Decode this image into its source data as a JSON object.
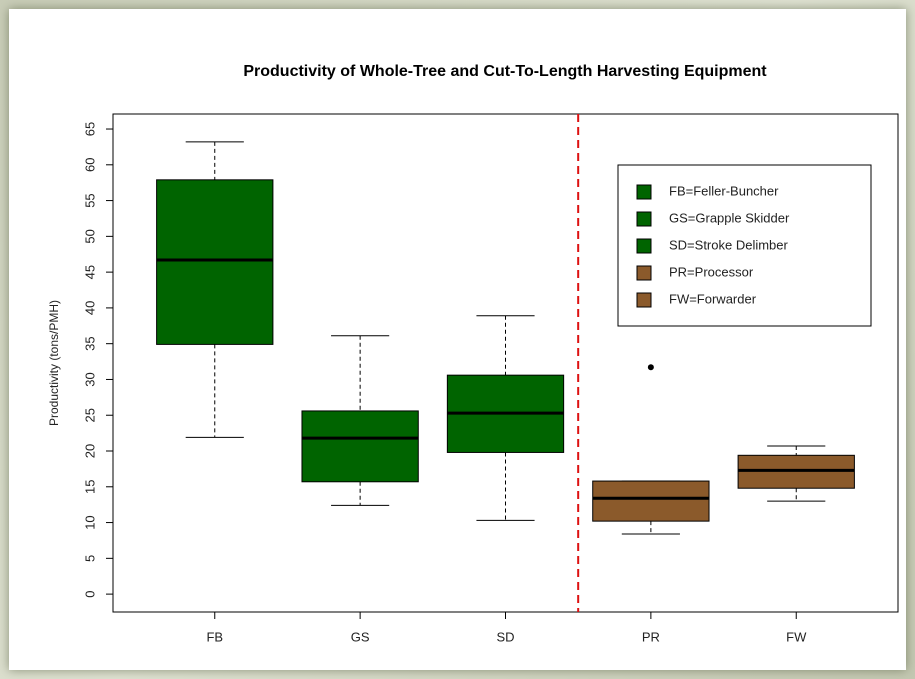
{
  "chart_data": {
    "type": "boxplot",
    "title": "Productivity of Whole-Tree and Cut-To-Length Harvesting Equipment",
    "y_label": "Productivity (tons/PMH)",
    "categories": [
      "FB",
      "GS",
      "SD",
      "PR",
      "FW"
    ],
    "boxes": [
      {
        "low": 21.9,
        "q1": 34.9,
        "median": 46.7,
        "q3": 57.9,
        "high": 63.2,
        "outliers": [],
        "color": "#006400"
      },
      {
        "low": 12.4,
        "q1": 15.7,
        "median": 21.8,
        "q3": 25.6,
        "high": 36.1,
        "outliers": [],
        "color": "#006400"
      },
      {
        "low": 10.3,
        "q1": 19.8,
        "median": 25.3,
        "q3": 30.6,
        "high": 38.9,
        "outliers": [],
        "color": "#006400"
      },
      {
        "low": 8.4,
        "q1": 10.2,
        "median": 13.4,
        "q3": 15.8,
        "high": 15.8,
        "outliers": [
          31.7
        ],
        "color": "#8b5a2b"
      },
      {
        "low": 13.0,
        "q1": 14.8,
        "median": 17.3,
        "q3": 19.4,
        "high": 20.7,
        "outliers": [],
        "color": "#8b5a2b"
      }
    ],
    "xlim": [
      0.3,
      5.7
    ],
    "ylim": [
      -2.5,
      67.1
    ],
    "yticks": [
      0,
      5,
      10,
      15,
      20,
      25,
      30,
      35,
      40,
      45,
      50,
      55,
      60,
      65
    ],
    "vline": {
      "x": 3.5,
      "color": "#dd1111"
    },
    "legend": {
      "position": "top-right",
      "entries": [
        {
          "label": "FB=Feller-Buncher",
          "color": "#006400"
        },
        {
          "label": "GS=Grapple Skidder",
          "color": "#006400"
        },
        {
          "label": "SD=Stroke Delimber",
          "color": "#006400"
        },
        {
          "label": "PR=Processor",
          "color": "#8b5a2b"
        },
        {
          "label": "FW=Forwarder",
          "color": "#8b5a2b"
        }
      ]
    }
  }
}
